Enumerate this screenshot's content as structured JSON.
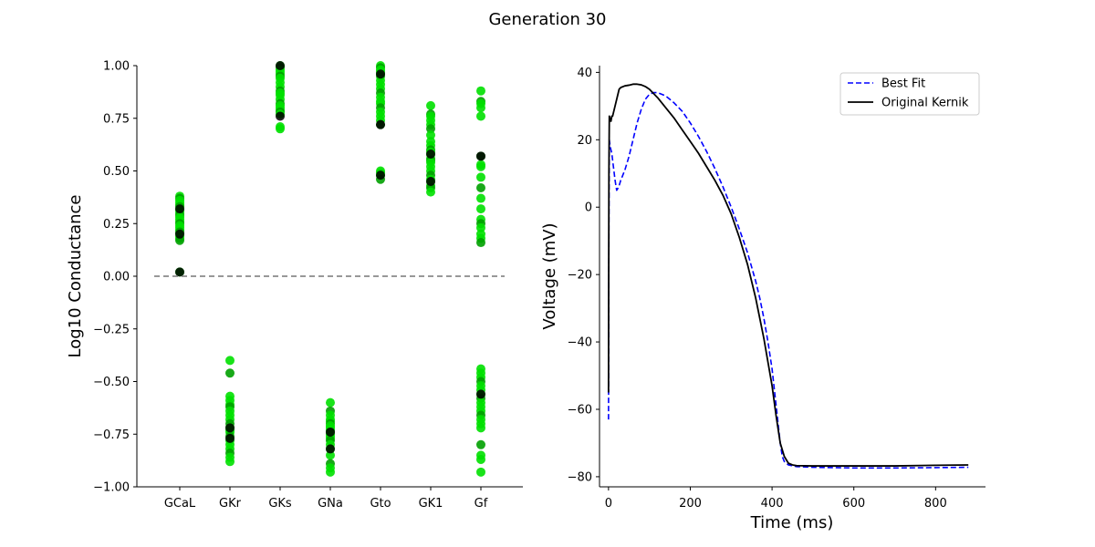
{
  "figure": {
    "title": "Generation 30"
  },
  "chart_data": [
    {
      "type": "scatter",
      "title": "",
      "xlabel": "",
      "ylabel": "Log10 Conductance",
      "categories": [
        "GCaL",
        "GKr",
        "GKs",
        "GNa",
        "Gto",
        "GK1",
        "Gf"
      ],
      "ylim": [
        -1.0,
        1.0
      ],
      "yticks": [
        -1.0,
        -0.75,
        -0.5,
        -0.25,
        0.0,
        0.25,
        0.5,
        0.75,
        1.0
      ],
      "ytick_labels": [
        "−1.00",
        "−0.75",
        "−0.50",
        "−0.25",
        "0.00",
        "0.25",
        "0.50",
        "0.75",
        "1.00"
      ],
      "reference_line": {
        "y": 0.0,
        "style": "dashed",
        "color": "#777777"
      },
      "grid": false,
      "point_colors": {
        "population": "#00e000",
        "overlap": "#00a000",
        "best": "#000000"
      },
      "population": {
        "GCaL": [
          0.38,
          0.37,
          0.36,
          0.35,
          0.34,
          0.33,
          0.32,
          0.31,
          0.3,
          0.29,
          0.28,
          0.27,
          0.26,
          0.25,
          0.24,
          0.23,
          0.22,
          0.21,
          0.2,
          0.19,
          0.18,
          0.17,
          0.02
        ],
        "GKr": [
          -0.4,
          -0.46,
          -0.57,
          -0.59,
          -0.61,
          -0.62,
          -0.64,
          -0.66,
          -0.68,
          -0.7,
          -0.72,
          -0.73,
          -0.74,
          -0.76,
          -0.78,
          -0.8,
          -0.82,
          -0.84,
          -0.86,
          -0.88
        ],
        "GKs": [
          1.0,
          0.99,
          0.98,
          0.97,
          0.96,
          0.95,
          0.94,
          0.92,
          0.9,
          0.88,
          0.87,
          0.86,
          0.84,
          0.82,
          0.81,
          0.8,
          0.79,
          0.78,
          0.77,
          0.71,
          0.7
        ],
        "GNa": [
          -0.6,
          -0.64,
          -0.66,
          -0.68,
          -0.69,
          -0.7,
          -0.71,
          -0.72,
          -0.73,
          -0.74,
          -0.75,
          -0.76,
          -0.77,
          -0.78,
          -0.8,
          -0.82,
          -0.85,
          -0.89,
          -0.91,
          -0.93
        ],
        "Gto": [
          1.0,
          0.99,
          0.98,
          0.97,
          0.96,
          0.95,
          0.93,
          0.91,
          0.89,
          0.87,
          0.85,
          0.83,
          0.82,
          0.8,
          0.78,
          0.76,
          0.74,
          0.72,
          0.5,
          0.49,
          0.48,
          0.46
        ],
        "GK1": [
          0.81,
          0.77,
          0.76,
          0.74,
          0.72,
          0.7,
          0.67,
          0.64,
          0.62,
          0.6,
          0.59,
          0.58,
          0.56,
          0.55,
          0.54,
          0.52,
          0.5,
          0.48,
          0.46,
          0.45,
          0.43,
          0.42,
          0.4
        ],
        "Gf": [
          0.88,
          0.83,
          0.82,
          0.8,
          0.76,
          0.57,
          0.53,
          0.52,
          0.47,
          0.42,
          0.37,
          0.32,
          0.27,
          0.25,
          0.23,
          0.2,
          0.18,
          0.16,
          -0.44,
          -0.46,
          -0.48,
          -0.5,
          -0.52,
          -0.54,
          -0.56,
          -0.58,
          -0.6,
          -0.62,
          -0.64,
          -0.66,
          -0.68,
          -0.7,
          -0.72,
          -0.8,
          -0.85,
          -0.87,
          -0.93
        ]
      },
      "best": {
        "GCaL": [
          0.32,
          0.2,
          0.02
        ],
        "GKr": [
          -0.72,
          -0.77
        ],
        "GKs": [
          1.0,
          0.76
        ],
        "GNa": [
          -0.74,
          -0.82
        ],
        "Gto": [
          0.96,
          0.72,
          0.48
        ],
        "GK1": [
          0.58,
          0.45
        ],
        "Gf": [
          0.57,
          -0.56
        ]
      }
    },
    {
      "type": "line",
      "title": "",
      "xlabel": "Time (ms)",
      "ylabel": "Voltage (mV)",
      "xlim": [
        -22,
        922
      ],
      "ylim": [
        -83,
        42
      ],
      "xticks": [
        0,
        200,
        400,
        600,
        800
      ],
      "xtick_labels": [
        "0",
        "200",
        "400",
        "600",
        "800"
      ],
      "yticks": [
        -80,
        -60,
        -40,
        -20,
        0,
        20,
        40
      ],
      "ytick_labels": [
        "−80",
        "−60",
        "−40",
        "−20",
        "0",
        "20",
        "40"
      ],
      "grid": false,
      "legend_position": "top-right",
      "series": [
        {
          "name": "Best Fit",
          "color": "#0000ff",
          "style": "dashed",
          "x": [
            0,
            0.5,
            1,
            2,
            4,
            8,
            12,
            16,
            20,
            25,
            30,
            40,
            50,
            60,
            70,
            80,
            90,
            100,
            110,
            120,
            130,
            140,
            160,
            180,
            200,
            220,
            240,
            260,
            280,
            300,
            320,
            340,
            360,
            370,
            380,
            390,
            400,
            410,
            420,
            425,
            430,
            440,
            460,
            500,
            600,
            700,
            800,
            880
          ],
          "y": [
            -63,
            -40,
            -5,
            20,
            18,
            16,
            12,
            8,
            5,
            6,
            8,
            11,
            15,
            20,
            25,
            29,
            32,
            33.5,
            34,
            34,
            33.5,
            33,
            31,
            28.5,
            25,
            21,
            16.5,
            11.5,
            6,
            0,
            -6.5,
            -13.5,
            -22,
            -27,
            -33,
            -40,
            -48,
            -59,
            -70,
            -74,
            -75.5,
            -76.5,
            -77,
            -77.2,
            -77.4,
            -77.4,
            -77.3,
            -77.2
          ]
        },
        {
          "name": "Original Kernik",
          "color": "#000000",
          "style": "solid",
          "x": [
            0,
            0.5,
            1,
            2,
            4,
            6,
            8,
            10,
            14,
            18,
            22,
            26,
            30,
            40,
            50,
            60,
            70,
            80,
            90,
            100,
            120,
            140,
            160,
            180,
            200,
            220,
            240,
            260,
            280,
            300,
            320,
            340,
            360,
            370,
            380,
            390,
            400,
            410,
            420,
            430,
            440,
            450,
            460,
            500,
            600,
            700,
            800,
            880
          ],
          "y": [
            -55,
            -20,
            10,
            27,
            26,
            25.5,
            27,
            27,
            29,
            31,
            33,
            35,
            35.5,
            36,
            36.2,
            36.5,
            36.5,
            36.3,
            35.8,
            35,
            32.5,
            29.5,
            26.5,
            23,
            19.5,
            16,
            12,
            8,
            3.5,
            -2,
            -9,
            -17,
            -27,
            -33,
            -39,
            -46,
            -53,
            -62,
            -70,
            -74,
            -76,
            -76.5,
            -76.7,
            -76.8,
            -76.8,
            -76.8,
            -76.6,
            -76.5
          ]
        }
      ]
    }
  ]
}
